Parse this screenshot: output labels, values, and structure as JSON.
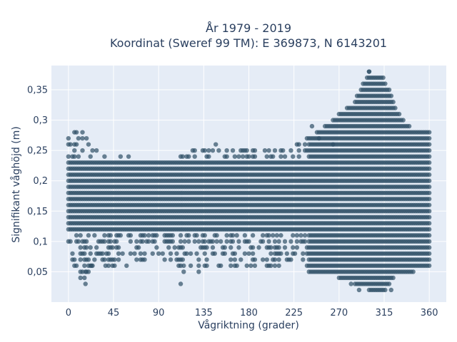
{
  "colors": {
    "plot_background": "#e5ecf6",
    "grid": "#ffffff",
    "marker": "#2f5066",
    "text": "#2a3f5f"
  },
  "chart_data": {
    "type": "scatter",
    "title_lines": [
      "År 1979 - 2019",
      "Koordinat (Sweref 99 TM): E 369873, N 6143201"
    ],
    "xlabel": "Vågriktning (grader)",
    "ylabel": "Signifikant våghöjd (m)",
    "xlim": [
      -17,
      377
    ],
    "ylim": [
      0,
      0.39
    ],
    "x_ticks": [
      0,
      45,
      90,
      135,
      180,
      225,
      270,
      315,
      360
    ],
    "x_tick_labels": [
      "0",
      "45",
      "90",
      "135",
      "180",
      "225",
      "270",
      "315",
      "360"
    ],
    "y_ticks": [
      0.05,
      0.1,
      0.15,
      0.2,
      0.25,
      0.3,
      0.35
    ],
    "y_tick_labels": [
      "0,05",
      "0,1",
      "0,15",
      "0,2",
      "0,25",
      "0,3",
      "0,35"
    ],
    "grid": true,
    "legend": "none",
    "series": [
      {
        "marker_opacity": 0.7,
        "description_of_density": "dense band 0.12–0.23 m across all directions; upper envelope shown below",
        "envelope": {
          "direction_deg": [
            0,
            15,
            30,
            45,
            60,
            90,
            120,
            150,
            180,
            210,
            225,
            240,
            255,
            270,
            285,
            300,
            315,
            330,
            345,
            360
          ],
          "max_height_m": [
            0.28,
            0.28,
            0.25,
            0.25,
            0.24,
            0.23,
            0.25,
            0.25,
            0.25,
            0.25,
            0.26,
            0.27,
            0.29,
            0.31,
            0.33,
            0.38,
            0.37,
            0.31,
            0.28,
            0.28
          ],
          "min_height_m": [
            0.06,
            0.03,
            0.06,
            0.06,
            0.06,
            0.07,
            0.05,
            0.06,
            0.06,
            0.06,
            0.07,
            0.05,
            0.05,
            0.04,
            0.03,
            0.02,
            0.02,
            0.05,
            0.05,
            0.06
          ]
        },
        "outliers": [
          {
            "x": 17,
            "y": 0.03
          },
          {
            "x": 12,
            "y": 0.05
          },
          {
            "x": 17,
            "y": 0.05
          },
          {
            "x": 23,
            "y": 0.06
          },
          {
            "x": 37,
            "y": 0.06
          },
          {
            "x": 112,
            "y": 0.03
          },
          {
            "x": 115,
            "y": 0.05
          },
          {
            "x": 130,
            "y": 0.05
          },
          {
            "x": 115,
            "y": 0.06
          },
          {
            "x": 200,
            "y": 0.06
          },
          {
            "x": 282,
            "y": 0.03
          },
          {
            "x": 290,
            "y": 0.02
          },
          {
            "x": 316,
            "y": 0.02
          },
          {
            "x": 322,
            "y": 0.02
          },
          {
            "x": 243,
            "y": 0.29
          },
          {
            "x": 300,
            "y": 0.38
          },
          {
            "x": 147,
            "y": 0.26
          },
          {
            "x": 178,
            "y": 0.25
          },
          {
            "x": 250,
            "y": 0.27
          },
          {
            "x": 264,
            "y": 0.26
          },
          {
            "x": 238,
            "y": 0.27
          }
        ]
      }
    ]
  }
}
